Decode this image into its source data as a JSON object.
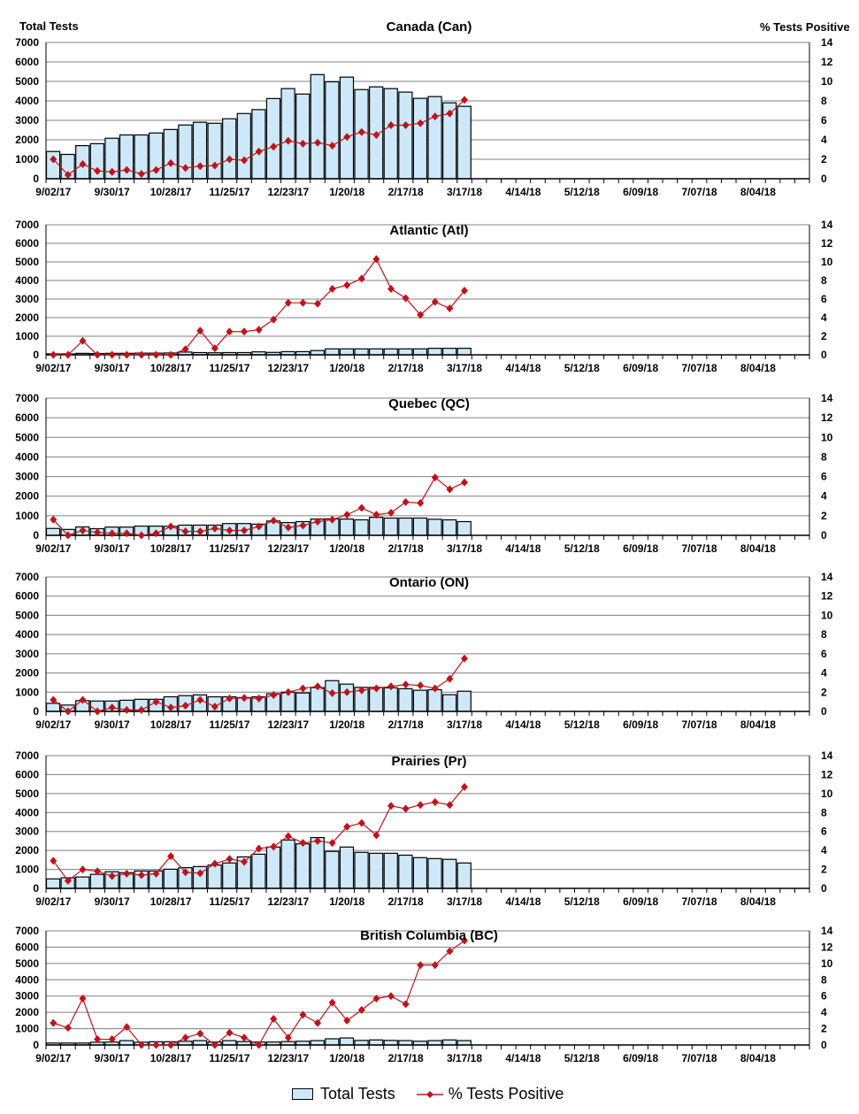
{
  "header": {
    "left_axis_title": "Total Tests",
    "right_axis_title": "% Tests Positive"
  },
  "legend": {
    "bars": "Total Tests",
    "line": "% Tests Positive"
  },
  "colors": {
    "bar_fill": "#cde9f9",
    "bar_stroke": "#000000",
    "line": "#c0121a",
    "grid": "#808080"
  },
  "chart_data": [
    {
      "type": "bar+line",
      "title": "Canada (Can)",
      "x_tick_labels": [
        "9/02/17",
        "9/30/17",
        "10/28/17",
        "11/25/17",
        "12/23/17",
        "1/20/18",
        "2/17/18",
        "3/17/18",
        "4/14/18",
        "5/12/18",
        "6/09/18",
        "7/07/18",
        "8/04/18"
      ],
      "ylim": [
        0,
        7000
      ],
      "y_ticks": [
        0,
        1000,
        2000,
        3000,
        4000,
        5000,
        6000,
        7000
      ],
      "y2lim": [
        0,
        14
      ],
      "y2_ticks": [
        0,
        2,
        4,
        6,
        8,
        10,
        12,
        14
      ],
      "grid": true,
      "series": [
        {
          "name": "Total Tests",
          "axis": "left",
          "values": [
            1400,
            1250,
            1700,
            1800,
            2080,
            2250,
            2250,
            2350,
            2530,
            2760,
            2900,
            2850,
            3080,
            3350,
            3550,
            4120,
            4630,
            4350,
            5350,
            4980,
            5220,
            4580,
            4720,
            4630,
            4450,
            4130,
            4220,
            3900,
            3720
          ]
        },
        {
          "name": "% Tests Positive",
          "axis": "right",
          "values": [
            2.0,
            0.4,
            1.5,
            0.8,
            0.7,
            0.9,
            0.5,
            0.9,
            1.6,
            1.1,
            1.3,
            1.35,
            2.0,
            1.9,
            2.8,
            3.3,
            3.9,
            3.6,
            3.7,
            3.4,
            4.3,
            4.8,
            4.5,
            5.5,
            5.5,
            5.7,
            6.4,
            6.7,
            8.1
          ]
        }
      ]
    },
    {
      "type": "bar+line",
      "title": "Atlantic (Atl)",
      "x_tick_labels": [
        "9/02/17",
        "9/30/17",
        "10/28/17",
        "11/25/17",
        "12/23/17",
        "1/20/18",
        "2/17/18",
        "3/17/18",
        "4/14/18",
        "5/12/18",
        "6/09/18",
        "7/07/18",
        "8/04/18"
      ],
      "ylim": [
        0,
        7000
      ],
      "y_ticks": [
        0,
        1000,
        2000,
        3000,
        4000,
        5000,
        6000,
        7000
      ],
      "y2lim": [
        0,
        14
      ],
      "y2_ticks": [
        0,
        2,
        4,
        6,
        8,
        10,
        12,
        14
      ],
      "grid": true,
      "series": [
        {
          "name": "Total Tests",
          "axis": "left",
          "values": [
            50,
            50,
            80,
            70,
            80,
            80,
            90,
            90,
            100,
            150,
            120,
            110,
            120,
            120,
            160,
            130,
            170,
            170,
            230,
            320,
            320,
            320,
            320,
            320,
            320,
            320,
            350,
            350,
            350
          ]
        },
        {
          "name": "% Tests Positive",
          "axis": "right",
          "values": [
            0,
            0,
            1.5,
            0,
            0,
            0,
            0,
            0,
            0,
            0.6,
            2.6,
            0.7,
            2.5,
            2.5,
            2.7,
            3.8,
            5.6,
            5.6,
            5.5,
            7.1,
            7.5,
            8.2,
            10.3,
            7.1,
            6.1,
            4.3,
            5.7,
            5.0,
            6.9
          ]
        }
      ]
    },
    {
      "type": "bar+line",
      "title": "Quebec (QC)",
      "x_tick_labels": [
        "9/02/17",
        "9/30/17",
        "10/28/17",
        "11/25/17",
        "12/23/17",
        "1/20/18",
        "2/17/18",
        "3/17/18",
        "4/14/18",
        "5/12/18",
        "6/09/18",
        "7/07/18",
        "8/04/18"
      ],
      "ylim": [
        0,
        7000
      ],
      "y_ticks": [
        0,
        1000,
        2000,
        3000,
        4000,
        5000,
        6000,
        7000
      ],
      "y2lim": [
        0,
        14
      ],
      "y2_ticks": [
        0,
        2,
        4,
        6,
        8,
        10,
        12,
        14
      ],
      "grid": true,
      "series": [
        {
          "name": "Total Tests",
          "axis": "left",
          "values": [
            350,
            300,
            430,
            340,
            420,
            420,
            470,
            470,
            460,
            520,
            520,
            520,
            600,
            600,
            570,
            730,
            650,
            700,
            830,
            840,
            830,
            790,
            920,
            880,
            880,
            880,
            820,
            790,
            700
          ]
        },
        {
          "name": "% Tests Positive",
          "axis": "right",
          "values": [
            1.6,
            0,
            0.5,
            0.3,
            0.2,
            0.2,
            0,
            0.2,
            0.9,
            0.4,
            0.4,
            0.7,
            0.5,
            0.5,
            0.9,
            1.5,
            0.8,
            1.0,
            1.4,
            1.6,
            2.1,
            2.8,
            2.1,
            2.3,
            3.4,
            3.3,
            5.9,
            4.7,
            5.4
          ]
        }
      ]
    },
    {
      "type": "bar+line",
      "title": "Ontario (ON)",
      "x_tick_labels": [
        "9/02/17",
        "9/30/17",
        "10/28/17",
        "11/25/17",
        "12/23/17",
        "1/20/18",
        "2/17/18",
        "3/17/18",
        "4/14/18",
        "5/12/18",
        "6/09/18",
        "7/07/18",
        "8/04/18"
      ],
      "ylim": [
        0,
        7000
      ],
      "y_ticks": [
        0,
        1000,
        2000,
        3000,
        4000,
        5000,
        6000,
        7000
      ],
      "y2lim": [
        0,
        14
      ],
      "y2_ticks": [
        0,
        2,
        4,
        6,
        8,
        10,
        12,
        14
      ],
      "grid": true,
      "series": [
        {
          "name": "Total Tests",
          "axis": "left",
          "values": [
            420,
            330,
            560,
            540,
            540,
            580,
            630,
            630,
            760,
            820,
            860,
            760,
            760,
            720,
            760,
            920,
            1000,
            960,
            1240,
            1600,
            1420,
            1250,
            1250,
            1230,
            1180,
            1100,
            1130,
            870,
            1050
          ]
        },
        {
          "name": "% Tests Positive",
          "axis": "right",
          "values": [
            1.2,
            0,
            1.2,
            0,
            0.4,
            0.15,
            0.15,
            1.0,
            0.4,
            0.6,
            1.2,
            0.5,
            1.35,
            1.4,
            1.35,
            1.7,
            2.0,
            2.4,
            2.6,
            1.9,
            2.0,
            2.2,
            2.4,
            2.6,
            2.8,
            2.7,
            2.4,
            3.4,
            5.5
          ]
        }
      ]
    },
    {
      "type": "bar+line",
      "title": "Prairies (Pr)",
      "x_tick_labels": [
        "9/02/17",
        "9/30/17",
        "10/28/17",
        "11/25/17",
        "12/23/17",
        "1/20/18",
        "2/17/18",
        "3/17/18",
        "4/14/18",
        "5/12/18",
        "6/09/18",
        "7/07/18",
        "8/04/18"
      ],
      "ylim": [
        0,
        7000
      ],
      "y_ticks": [
        0,
        1000,
        2000,
        3000,
        4000,
        5000,
        6000,
        7000
      ],
      "y2lim": [
        0,
        14
      ],
      "y2_ticks": [
        0,
        2,
        4,
        6,
        8,
        10,
        12,
        14
      ],
      "grid": true,
      "series": [
        {
          "name": "Total Tests",
          "axis": "left",
          "values": [
            500,
            560,
            600,
            740,
            880,
            830,
            920,
            920,
            1010,
            1090,
            1150,
            1230,
            1340,
            1660,
            1800,
            2180,
            2550,
            2350,
            2680,
            1950,
            2180,
            1900,
            1850,
            1850,
            1750,
            1620,
            1570,
            1530,
            1340
          ]
        },
        {
          "name": "% Tests Positive",
          "axis": "right",
          "values": [
            2.9,
            0.8,
            2.0,
            1.8,
            1.3,
            1.55,
            1.4,
            1.55,
            3.4,
            1.7,
            1.6,
            2.6,
            3.1,
            2.8,
            4.2,
            4.4,
            5.5,
            4.8,
            5.0,
            4.8,
            6.5,
            6.9,
            5.6,
            8.7,
            8.4,
            8.8,
            9.1,
            8.8,
            10.7
          ]
        }
      ]
    },
    {
      "type": "bar+line",
      "title": "British Columbia (BC)",
      "x_tick_labels": [
        "9/02/17",
        "9/30/17",
        "10/28/17",
        "11/25/17",
        "12/23/17",
        "1/20/18",
        "2/17/18",
        "3/17/18",
        "4/14/18",
        "5/12/18",
        "6/09/18",
        "7/07/18",
        "8/04/18"
      ],
      "ylim": [
        0,
        7000
      ],
      "y_ticks": [
        0,
        1000,
        2000,
        3000,
        4000,
        5000,
        6000,
        7000
      ],
      "y2lim": [
        0,
        14
      ],
      "y2_ticks": [
        0,
        2,
        4,
        6,
        8,
        10,
        12,
        14
      ],
      "grid": true,
      "series": [
        {
          "name": "Total Tests",
          "axis": "left",
          "values": [
            120,
            120,
            120,
            170,
            180,
            270,
            170,
            200,
            200,
            230,
            270,
            180,
            270,
            210,
            180,
            180,
            210,
            230,
            270,
            380,
            430,
            280,
            310,
            280,
            270,
            230,
            270,
            310,
            270
          ]
        },
        {
          "name": "% Tests Positive",
          "axis": "right",
          "values": [
            2.7,
            2.1,
            5.7,
            0.7,
            0.7,
            2.2,
            0,
            0,
            0,
            0.9,
            1.4,
            0,
            1.5,
            0.9,
            0,
            3.2,
            0.9,
            3.7,
            2.7,
            5.2,
            3.0,
            4.3,
            5.7,
            6.0,
            5.0,
            9.8,
            9.8,
            11.5,
            12.8
          ]
        }
      ]
    }
  ]
}
